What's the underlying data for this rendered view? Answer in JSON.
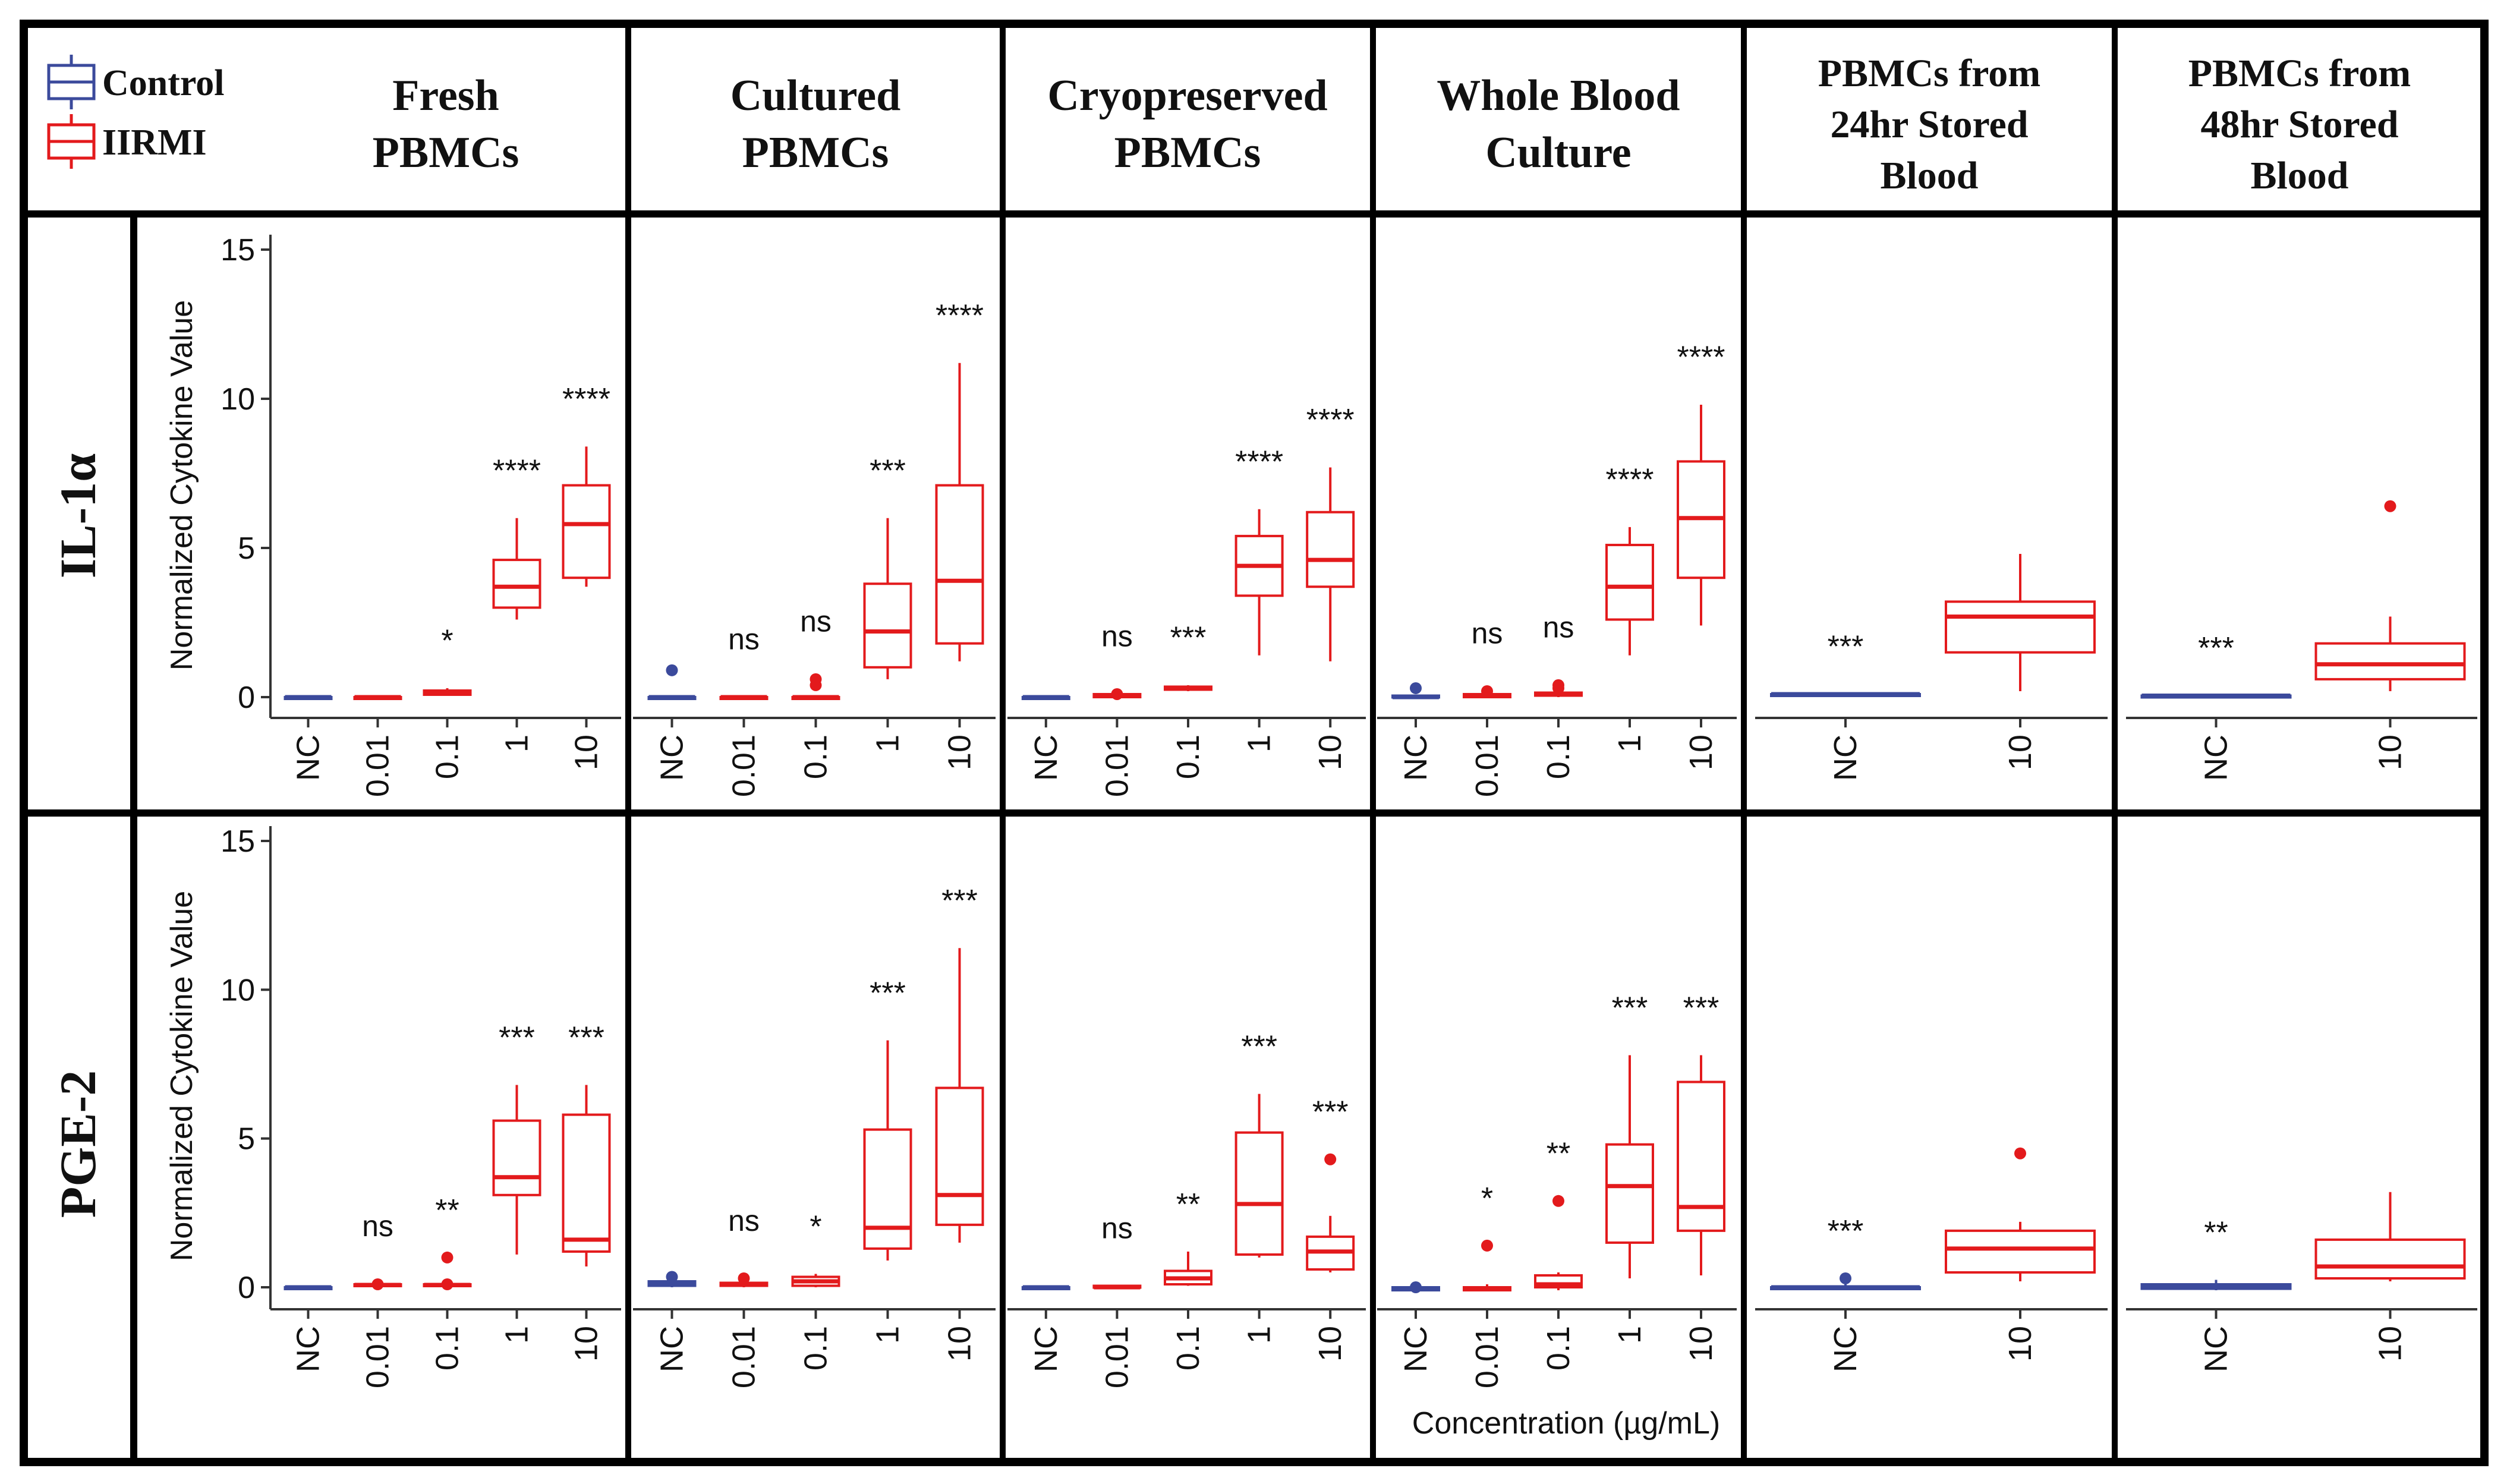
{
  "legend": {
    "items": [
      {
        "label": "Control",
        "color": "#3b4a9c"
      },
      {
        "label": "IIRMI",
        "color": "#e31a1c"
      }
    ]
  },
  "columns": [
    {
      "title": [
        "Fresh",
        "PBMCs"
      ]
    },
    {
      "title": [
        "Cultured",
        "PBMCs"
      ]
    },
    {
      "title": [
        "Cryopreserved",
        "PBMCs"
      ]
    },
    {
      "title": [
        "Whole Blood",
        "Culture"
      ]
    },
    {
      "title": [
        "PBMCs from",
        "24hr Stored",
        "Blood"
      ]
    },
    {
      "title": [
        "PBMCs from",
        "48hr Stored",
        "Blood"
      ]
    }
  ],
  "rows": [
    {
      "label": "IL-1α"
    },
    {
      "label": "PGE-2"
    }
  ],
  "y_axis_label": "Normalized Cytokine Value",
  "x_axis_label": "Concentration (µg/mL)",
  "y_ticks": [
    "0",
    "5",
    "10",
    "15"
  ],
  "chart_data": {
    "type": "boxplot",
    "title": "",
    "xlabel": "Concentration (µg/mL)",
    "ylabel": "Normalized Cytokine Value",
    "ylim": [
      0,
      15
    ],
    "series_colors": {
      "Control": "#3b4a9c",
      "IIRMI": "#e31a1c"
    },
    "panels": [
      {
        "row": "IL-1α",
        "column": "Fresh PBMCs",
        "categories": [
          "NC",
          "0.01",
          "0.1",
          "1",
          "10"
        ],
        "significance": [
          "",
          "",
          "*",
          "****",
          "****"
        ],
        "boxes": [
          {
            "group": "Control",
            "min": 0,
            "q1": 0,
            "median": 0,
            "q3": 0,
            "max": 0,
            "outliers": []
          },
          {
            "group": "IIRMI",
            "min": 0,
            "q1": 0,
            "median": 0,
            "q3": 0,
            "max": 0,
            "outliers": []
          },
          {
            "group": "IIRMI",
            "min": 0.05,
            "q1": 0.08,
            "median": 0.15,
            "q3": 0.22,
            "max": 0.3,
            "outliers": []
          },
          {
            "group": "IIRMI",
            "min": 2.6,
            "q1": 3.0,
            "median": 3.7,
            "q3": 4.6,
            "max": 6.0,
            "outliers": []
          },
          {
            "group": "IIRMI",
            "min": 3.7,
            "q1": 4.0,
            "median": 5.8,
            "q3": 7.1,
            "max": 8.4,
            "outliers": []
          }
        ]
      },
      {
        "row": "IL-1α",
        "column": "Cultured PBMCs",
        "categories": [
          "NC",
          "0.01",
          "0.1",
          "1",
          "10"
        ],
        "significance": [
          "",
          "ns",
          "ns",
          "***",
          "****"
        ],
        "boxes": [
          {
            "group": "Control",
            "min": 0,
            "q1": 0,
            "median": 0,
            "q3": 0,
            "max": 0,
            "outliers": [
              0.9
            ]
          },
          {
            "group": "IIRMI",
            "min": 0,
            "q1": 0,
            "median": 0,
            "q3": 0,
            "max": 0,
            "outliers": []
          },
          {
            "group": "IIRMI",
            "min": 0,
            "q1": 0,
            "median": 0,
            "q3": 0,
            "max": 0,
            "outliers": [
              0.4,
              0.6
            ]
          },
          {
            "group": "IIRMI",
            "min": 0.6,
            "q1": 1.0,
            "median": 2.2,
            "q3": 3.8,
            "max": 6.0,
            "outliers": []
          },
          {
            "group": "IIRMI",
            "min": 1.2,
            "q1": 1.8,
            "median": 3.9,
            "q3": 7.1,
            "max": 11.2,
            "outliers": []
          }
        ]
      },
      {
        "row": "IL-1α",
        "column": "Cryopreserved PBMCs",
        "categories": [
          "NC",
          "0.01",
          "0.1",
          "1",
          "10"
        ],
        "significance": [
          "",
          "ns",
          "***",
          "****",
          "****"
        ],
        "boxes": [
          {
            "group": "Control",
            "min": 0,
            "q1": 0,
            "median": 0,
            "q3": 0,
            "max": 0,
            "outliers": []
          },
          {
            "group": "IIRMI",
            "min": 0,
            "q1": 0,
            "median": 0.05,
            "q3": 0.1,
            "max": 0.1,
            "outliers": [
              0.1
            ]
          },
          {
            "group": "IIRMI",
            "min": 0.2,
            "q1": 0.25,
            "median": 0.3,
            "q3": 0.35,
            "max": 0.4,
            "outliers": []
          },
          {
            "group": "IIRMI",
            "min": 1.4,
            "q1": 3.4,
            "median": 4.4,
            "q3": 5.4,
            "max": 6.3,
            "outliers": []
          },
          {
            "group": "IIRMI",
            "min": 1.2,
            "q1": 3.7,
            "median": 4.6,
            "q3": 6.2,
            "max": 7.7,
            "outliers": []
          }
        ]
      },
      {
        "row": "IL-1α",
        "column": "Whole Blood Culture",
        "categories": [
          "NC",
          "0.01",
          "0.1",
          "1",
          "10"
        ],
        "significance": [
          "",
          "ns",
          "ns",
          "****",
          "****"
        ],
        "boxes": [
          {
            "group": "Control",
            "min": 0,
            "q1": 0,
            "median": 0,
            "q3": 0.05,
            "max": 0.05,
            "outliers": [
              0.3
            ]
          },
          {
            "group": "IIRMI",
            "min": 0,
            "q1": 0,
            "median": 0.05,
            "q3": 0.1,
            "max": 0.1,
            "outliers": [
              0.2
            ]
          },
          {
            "group": "IIRMI",
            "min": 0,
            "q1": 0.05,
            "median": 0.1,
            "q3": 0.15,
            "max": 0.2,
            "outliers": [
              0.3,
              0.4
            ]
          },
          {
            "group": "IIRMI",
            "min": 1.4,
            "q1": 2.6,
            "median": 3.7,
            "q3": 5.1,
            "max": 5.7,
            "outliers": []
          },
          {
            "group": "IIRMI",
            "min": 2.4,
            "q1": 4.0,
            "median": 6.0,
            "q3": 7.9,
            "max": 9.8,
            "outliers": []
          }
        ]
      },
      {
        "row": "IL-1α",
        "column": "PBMCs from 24hr Stored Blood",
        "categories": [
          "NC",
          "10"
        ],
        "significance": [
          "***",
          ""
        ],
        "boxes": [
          {
            "group": "Control",
            "min": 0.1,
            "q1": 0.1,
            "median": 0.1,
            "q3": 0.1,
            "max": 0.1,
            "outliers": []
          },
          {
            "group": "IIRMI",
            "min": 0.2,
            "q1": 1.5,
            "median": 2.7,
            "q3": 3.2,
            "max": 4.8,
            "outliers": []
          }
        ]
      },
      {
        "row": "IL-1α",
        "column": "PBMCs from 48hr Stored Blood",
        "categories": [
          "NC",
          "10"
        ],
        "significance": [
          "***",
          ""
        ],
        "boxes": [
          {
            "group": "Control",
            "min": 0.05,
            "q1": 0.05,
            "median": 0.05,
            "q3": 0.05,
            "max": 0.05,
            "outliers": []
          },
          {
            "group": "IIRMI",
            "min": 0.2,
            "q1": 0.6,
            "median": 1.1,
            "q3": 1.8,
            "max": 2.7,
            "outliers": [
              6.4
            ]
          }
        ]
      },
      {
        "row": "PGE-2",
        "column": "Fresh PBMCs",
        "categories": [
          "NC",
          "0.01",
          "0.1",
          "1",
          "10"
        ],
        "significance": [
          "",
          "ns",
          "**",
          "***",
          "***"
        ],
        "boxes": [
          {
            "group": "Control",
            "min": 0,
            "q1": 0,
            "median": 0,
            "q3": 0,
            "max": 0,
            "outliers": []
          },
          {
            "group": "IIRMI",
            "min": 0,
            "q1": 0.05,
            "median": 0.08,
            "q3": 0.1,
            "max": 0.12,
            "outliers": [
              0.1
            ]
          },
          {
            "group": "IIRMI",
            "min": 0,
            "q1": 0.05,
            "median": 0.08,
            "q3": 0.1,
            "max": 0.15,
            "outliers": [
              1.0,
              0.1
            ]
          },
          {
            "group": "IIRMI",
            "min": 1.1,
            "q1": 3.1,
            "median": 3.7,
            "q3": 5.6,
            "max": 6.8,
            "outliers": []
          },
          {
            "group": "IIRMI",
            "min": 0.7,
            "q1": 1.2,
            "median": 1.6,
            "q3": 5.8,
            "max": 6.8,
            "outliers": []
          }
        ]
      },
      {
        "row": "PGE-2",
        "column": "Cultured PBMCs",
        "categories": [
          "NC",
          "0.01",
          "0.1",
          "1",
          "10"
        ],
        "significance": [
          "",
          "ns",
          "*",
          "***",
          "***"
        ],
        "boxes": [
          {
            "group": "Control",
            "min": 0,
            "q1": 0.05,
            "median": 0.1,
            "q3": 0.2,
            "max": 0.3,
            "outliers": [
              0.35
            ]
          },
          {
            "group": "IIRMI",
            "min": 0,
            "q1": 0.05,
            "median": 0.1,
            "q3": 0.15,
            "max": 0.2,
            "outliers": [
              0.3
            ]
          },
          {
            "group": "IIRMI",
            "min": 0,
            "q1": 0.05,
            "median": 0.2,
            "q3": 0.35,
            "max": 0.45,
            "outliers": []
          },
          {
            "group": "IIRMI",
            "min": 0.9,
            "q1": 1.3,
            "median": 2.0,
            "q3": 5.3,
            "max": 8.3,
            "outliers": []
          },
          {
            "group": "IIRMI",
            "min": 1.5,
            "q1": 2.1,
            "median": 3.1,
            "q3": 6.7,
            "max": 11.4,
            "outliers": []
          }
        ]
      },
      {
        "row": "PGE-2",
        "column": "Cryopreserved PBMCs",
        "categories": [
          "NC",
          "0.01",
          "0.1",
          "1",
          "10"
        ],
        "significance": [
          "",
          "ns",
          "**",
          "***",
          "***"
        ],
        "boxes": [
          {
            "group": "Control",
            "min": 0,
            "q1": 0,
            "median": 0,
            "q3": 0,
            "max": 0,
            "outliers": []
          },
          {
            "group": "IIRMI",
            "min": 0,
            "q1": 0,
            "median": 0,
            "q3": 0.05,
            "max": 0.05,
            "outliers": []
          },
          {
            "group": "IIRMI",
            "min": 0.05,
            "q1": 0.1,
            "median": 0.3,
            "q3": 0.55,
            "max": 1.2,
            "outliers": []
          },
          {
            "group": "IIRMI",
            "min": 1.0,
            "q1": 1.1,
            "median": 2.8,
            "q3": 5.2,
            "max": 6.5,
            "outliers": []
          },
          {
            "group": "IIRMI",
            "min": 0.5,
            "q1": 0.6,
            "median": 1.2,
            "q3": 1.7,
            "max": 2.4,
            "outliers": [
              4.3
            ]
          }
        ]
      },
      {
        "row": "PGE-2",
        "column": "Whole Blood Culture",
        "categories": [
          "NC",
          "0.01",
          "0.1",
          "1",
          "10"
        ],
        "significance": [
          "",
          "*",
          "**",
          "***",
          "***"
        ],
        "boxes": [
          {
            "group": "Control",
            "min": -0.1,
            "q1": -0.1,
            "median": -0.05,
            "q3": 0,
            "max": 0,
            "outliers": [
              0
            ]
          },
          {
            "group": "IIRMI",
            "min": -0.1,
            "q1": -0.1,
            "median": -0.05,
            "q3": 0,
            "max": 0.1,
            "outliers": [
              1.4
            ]
          },
          {
            "group": "IIRMI",
            "min": -0.1,
            "q1": 0,
            "median": 0.1,
            "q3": 0.4,
            "max": 0.5,
            "outliers": [
              2.9
            ]
          },
          {
            "group": "IIRMI",
            "min": 0.3,
            "q1": 1.5,
            "median": 3.4,
            "q3": 4.8,
            "max": 7.8,
            "outliers": []
          },
          {
            "group": "IIRMI",
            "min": 0.4,
            "q1": 1.9,
            "median": 2.7,
            "q3": 6.9,
            "max": 7.8,
            "outliers": []
          }
        ]
      },
      {
        "row": "PGE-2",
        "column": "PBMCs from 24hr Stored Blood",
        "categories": [
          "NC",
          "10"
        ],
        "significance": [
          "***",
          ""
        ],
        "boxes": [
          {
            "group": "Control",
            "min": -0.1,
            "q1": -0.05,
            "median": 0,
            "q3": 0,
            "max": 0.1,
            "outliers": [
              0.3
            ]
          },
          {
            "group": "IIRMI",
            "min": 0.2,
            "q1": 0.5,
            "median": 1.3,
            "q3": 1.9,
            "max": 2.2,
            "outliers": [
              4.5
            ]
          }
        ]
      },
      {
        "row": "PGE-2",
        "column": "PBMCs from 48hr Stored Blood",
        "categories": [
          "NC",
          "10"
        ],
        "significance": [
          "**",
          ""
        ],
        "boxes": [
          {
            "group": "Control",
            "min": -0.1,
            "q1": -0.05,
            "median": 0.05,
            "q3": 0.1,
            "max": 0.25,
            "outliers": []
          },
          {
            "group": "IIRMI",
            "min": 0.2,
            "q1": 0.3,
            "median": 0.7,
            "q3": 1.6,
            "max": 3.2,
            "outliers": []
          }
        ]
      }
    ]
  }
}
